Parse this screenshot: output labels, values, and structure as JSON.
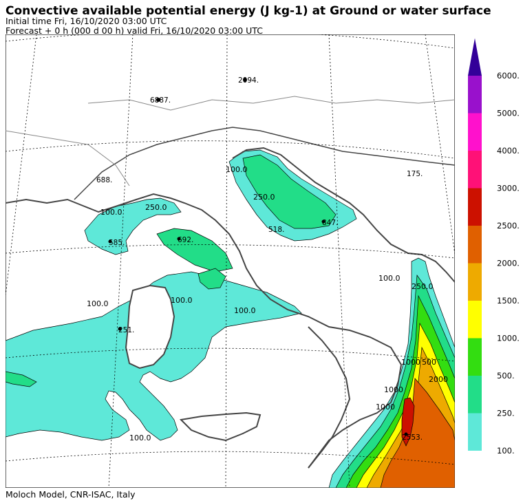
{
  "header": {
    "title": "Convective available potential energy (J kg-1) at Ground or water surface",
    "initial_time": "Initial time  Fri, 16/10/2020  03:00 UTC",
    "forecast": "Forecast  +    0 h  (000 d 00 h)  valid Fri, 16/10/2020 03:00 UTC"
  },
  "footer": "Moloch Model, CNR-ISAC, Italy",
  "colorbar": {
    "levels": [
      {
        "value": 100,
        "label": "100.",
        "color": "#5ee8d8"
      },
      {
        "value": 250,
        "label": "250.",
        "color": "#22dd88"
      },
      {
        "value": 500,
        "label": "500.",
        "color": "#33dd11"
      },
      {
        "value": 1000,
        "label": "1000.",
        "color": "#ffff00"
      },
      {
        "value": 1500,
        "label": "1500.",
        "color": "#eeaa00"
      },
      {
        "value": 2000,
        "label": "2000.",
        "color": "#e06000"
      },
      {
        "value": 2500,
        "label": "2500.",
        "color": "#cc1100"
      },
      {
        "value": 3000,
        "label": "3000.",
        "color": "#ff1177"
      },
      {
        "value": 4000,
        "label": "4000.",
        "color": "#ff11cc"
      },
      {
        "value": 5000,
        "label": "5000.",
        "color": "#9911cc"
      },
      {
        "value": 6000,
        "label": "6000.",
        "color": "#330099"
      }
    ]
  },
  "contour_labels": [
    "100.0",
    "250.0",
    "100.0",
    "250.0",
    "100.0",
    "100.0",
    "100.0",
    "100.0",
    "250.0",
    "1000",
    "500",
    "2000",
    "1000",
    "1000",
    "100.0"
  ],
  "value_labels": [
    "2094.",
    "6887.",
    "688.",
    "175.",
    "518.",
    "847.",
    "585.",
    "692.",
    "251.",
    "2553."
  ]
}
